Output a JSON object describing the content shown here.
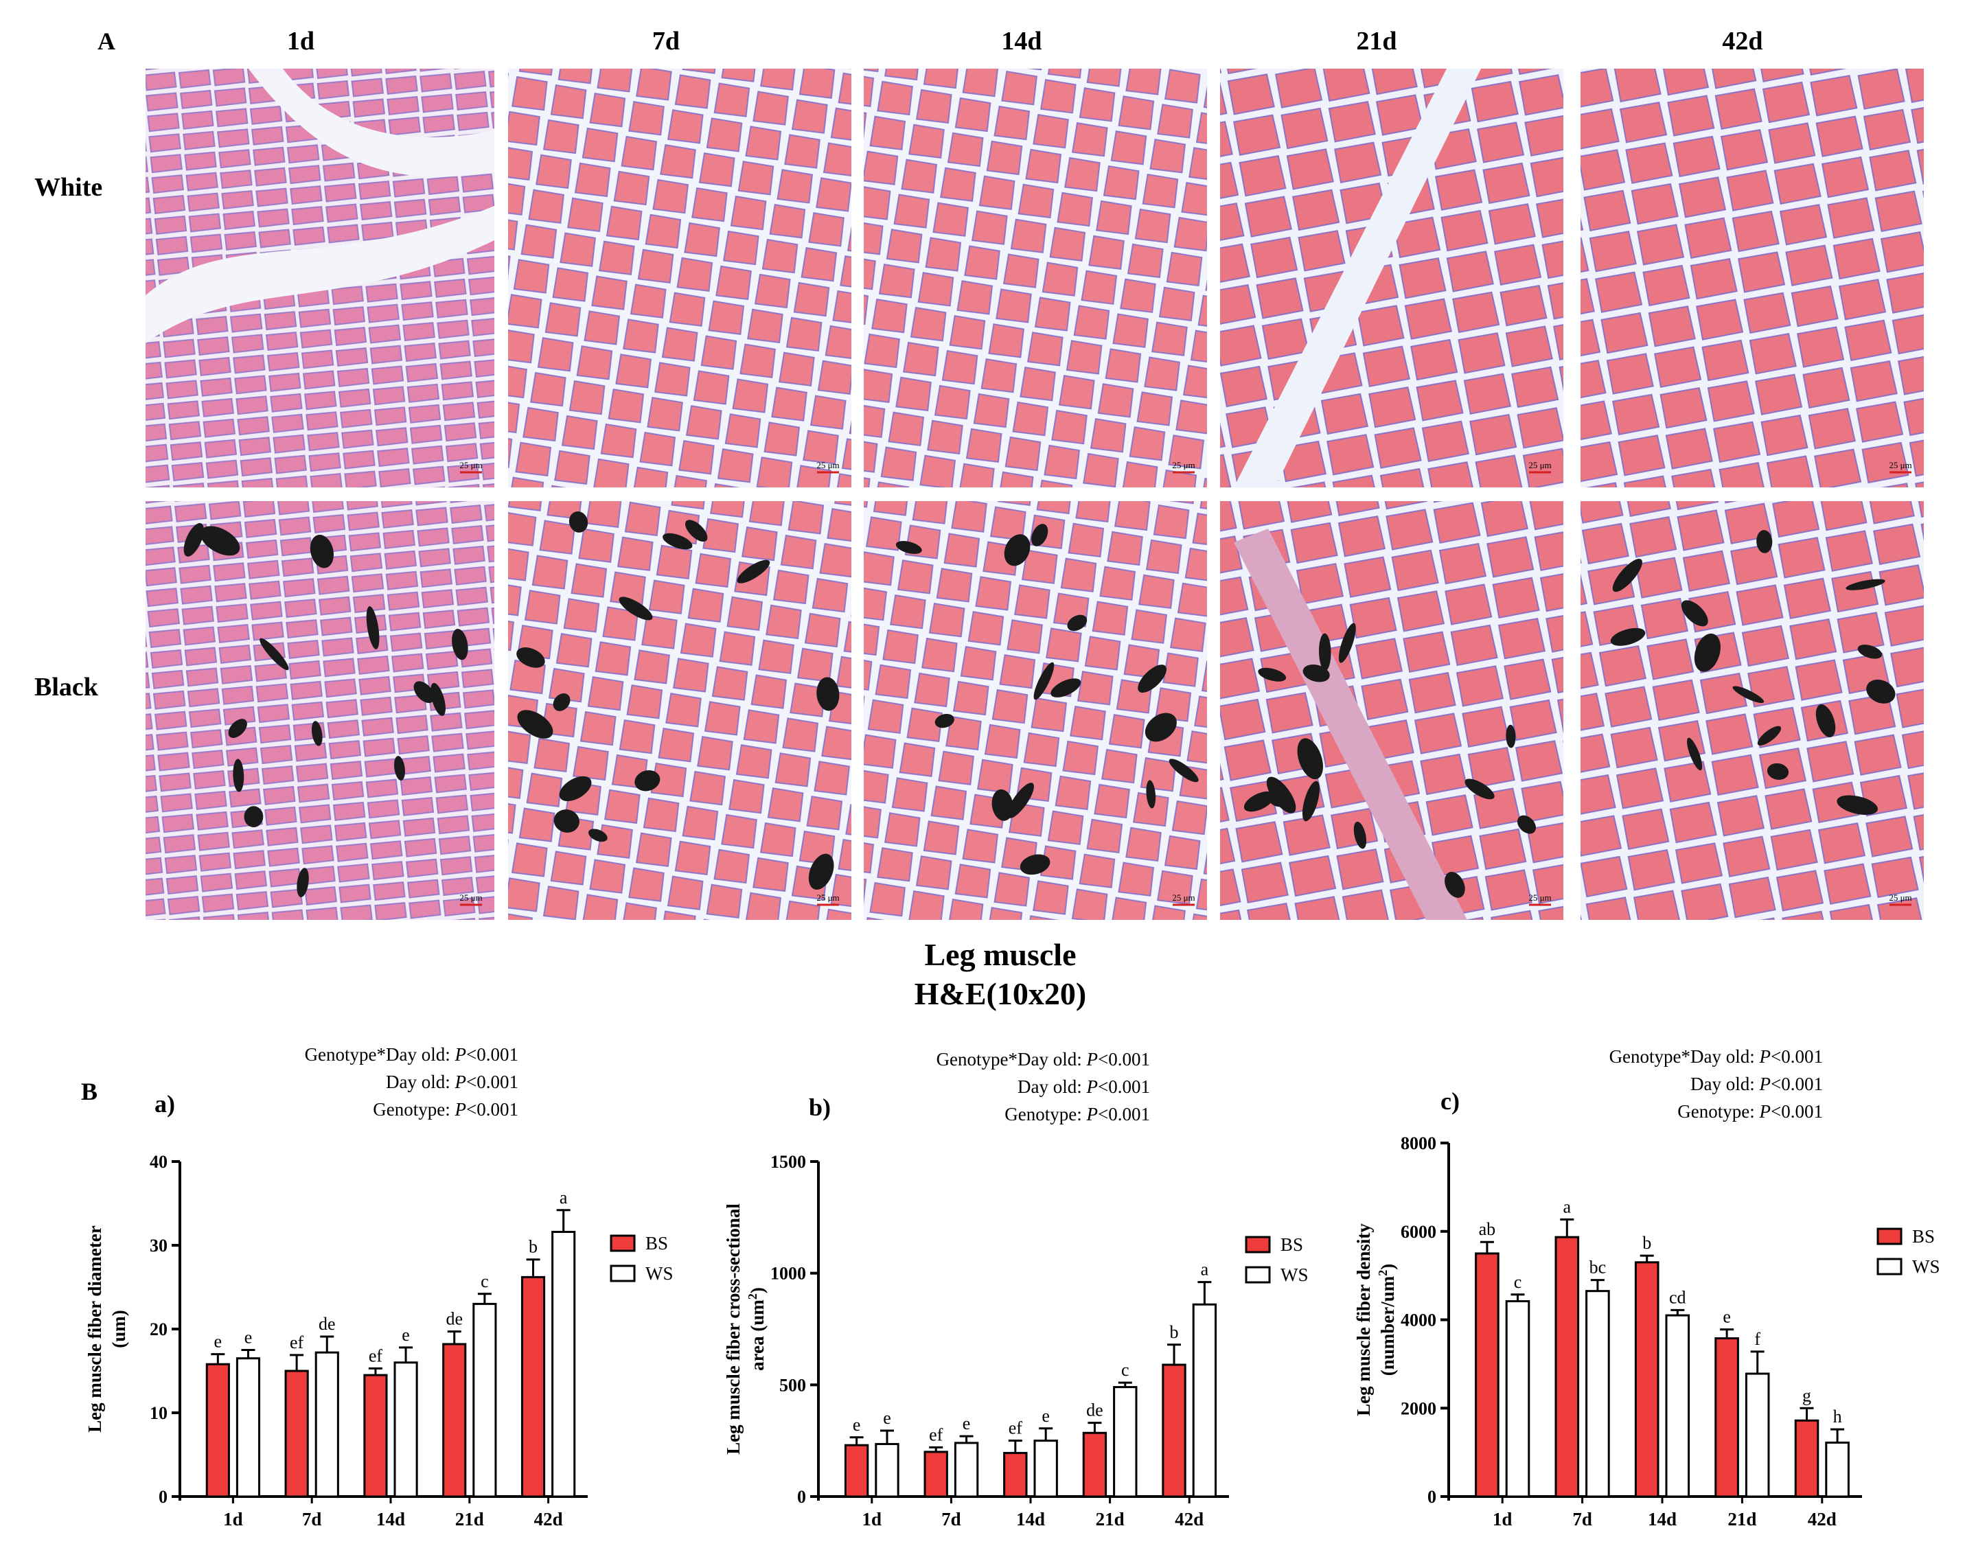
{
  "panel_a": {
    "label": "A",
    "columns": [
      "1d",
      "7d",
      "14d",
      "21d",
      "42d"
    ],
    "rows": [
      "White",
      "Black"
    ],
    "scale_bar": "25 μm",
    "caption_line1": "Leg muscle",
    "caption_line2": "H&E(10x20)"
  },
  "panel_b": {
    "label": "B",
    "stats_prefixes": [
      "Genotype*Day old: ",
      "Day old: ",
      "Genotype: "
    ],
    "p_symbol": "P",
    "p_value": "<0.001"
  },
  "colors": {
    "BS": "#ee3b3b",
    "WS": "#ffffff",
    "tissue": "#ec7f8b",
    "stroma": "#eef2fb",
    "nuclei": "#7a5fc0"
  },
  "chart_data": [
    {
      "type": "bar",
      "panel": "a)",
      "categories": [
        "1d",
        "7d",
        "14d",
        "21d",
        "42d"
      ],
      "ylabel_line1": "Leg muscle fiber diameter",
      "ylabel_line2": "(um)",
      "ylim": [
        0,
        40
      ],
      "yticks": [
        0,
        10,
        20,
        30,
        40
      ],
      "series": [
        {
          "name": "BS",
          "values": [
            15.8,
            15.0,
            14.5,
            18.2,
            26.2
          ],
          "errors": [
            1.2,
            1.9,
            0.8,
            1.5,
            2.1
          ],
          "labels": [
            "e",
            "ef",
            "ef",
            "de",
            "b"
          ]
        },
        {
          "name": "WS",
          "values": [
            16.5,
            17.2,
            16.0,
            23.0,
            31.6
          ],
          "errors": [
            1.0,
            1.9,
            1.8,
            1.2,
            2.6
          ],
          "labels": [
            "e",
            "de",
            "e",
            "c",
            "a"
          ]
        }
      ],
      "legend": "right"
    },
    {
      "type": "bar",
      "panel": "b)",
      "categories": [
        "1d",
        "7d",
        "14d",
        "21d",
        "42d"
      ],
      "ylabel_line1": "Leg muscle fiber cross-sectional",
      "ylabel_line2": "area (um",
      "ylabel_sup": "2",
      "ylabel_end": ")",
      "ylim": [
        0,
        1500
      ],
      "yticks": [
        0,
        500,
        1000,
        1500
      ],
      "series": [
        {
          "name": "BS",
          "values": [
            230,
            200,
            195,
            285,
            590
          ],
          "errors": [
            35,
            20,
            55,
            45,
            90
          ],
          "labels": [
            "e",
            "ef",
            "ef",
            "de",
            "b"
          ]
        },
        {
          "name": "WS",
          "values": [
            235,
            240,
            250,
            490,
            860
          ],
          "errors": [
            60,
            30,
            55,
            20,
            100
          ],
          "labels": [
            "e",
            "e",
            "e",
            "c",
            "a"
          ]
        }
      ],
      "legend": "right"
    },
    {
      "type": "bar",
      "panel": "c)",
      "categories": [
        "1d",
        "7d",
        "14d",
        "21d",
        "42d"
      ],
      "ylabel_line1": "Leg muscle fiber density",
      "ylabel_line2": "(number/um",
      "ylabel_sup": "2",
      "ylabel_end": ")",
      "ylim": [
        0,
        8000
      ],
      "yticks": [
        0,
        2000,
        4000,
        6000,
        8000
      ],
      "series": [
        {
          "name": "BS",
          "values": [
            5500,
            5870,
            5300,
            3580,
            1720
          ],
          "errors": [
            260,
            400,
            150,
            200,
            280
          ],
          "labels": [
            "ab",
            "a",
            "b",
            "e",
            "g"
          ]
        },
        {
          "name": "WS",
          "values": [
            4420,
            4650,
            4100,
            2780,
            1220
          ],
          "errors": [
            150,
            250,
            120,
            500,
            300
          ],
          "labels": [
            "c",
            "bc",
            "cd",
            "f",
            "h"
          ]
        }
      ],
      "legend": "right"
    }
  ]
}
